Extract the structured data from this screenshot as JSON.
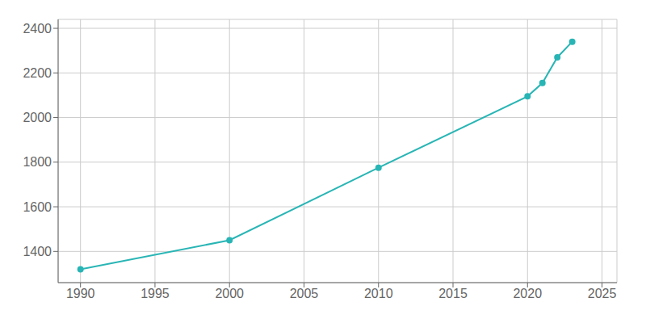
{
  "chart_data": {
    "type": "line",
    "x": [
      1990,
      2000,
      2010,
      2020,
      2021,
      2022,
      2023
    ],
    "values": [
      1320,
      1450,
      1775,
      2095,
      2155,
      2270,
      2340
    ],
    "color": "#29b5b5",
    "marker": "circle",
    "xlim": [
      1988.5,
      2026
    ],
    "ylim": [
      1260,
      2440
    ],
    "xticks": [
      1990,
      1995,
      2000,
      2005,
      2010,
      2015,
      2020,
      2025
    ],
    "yticks": [
      1400,
      1600,
      1800,
      2000,
      2200,
      2400
    ],
    "grid": true
  }
}
